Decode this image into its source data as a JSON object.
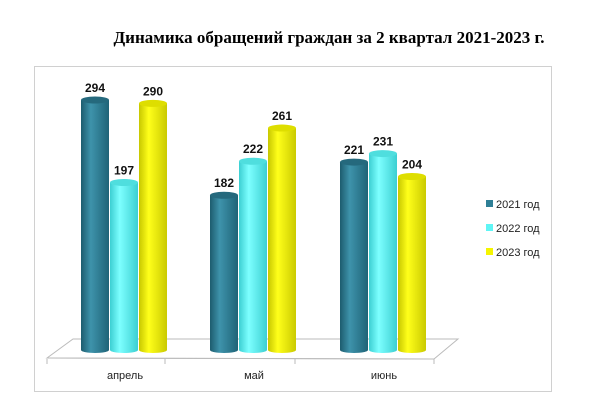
{
  "chart_data": {
    "type": "bar",
    "title": "Динамика обращений граждан за 2 квартал 2021-2023 г.",
    "categories": [
      "апрель",
      "май",
      "июнь"
    ],
    "series": [
      {
        "name": "2021 год",
        "values": [
          294,
          182,
          221
        ],
        "color": "#2e7f96"
      },
      {
        "name": "2022 год",
        "values": [
          197,
          222,
          231
        ],
        "color": "#5ff5f5"
      },
      {
        "name": "2023 год",
        "values": [
          290,
          261,
          204
        ],
        "color": "#f5f500"
      }
    ],
    "ylim": [
      0,
      300
    ],
    "grid": false,
    "legend": "right",
    "data_labels": true,
    "style": "3d-cylinder"
  }
}
